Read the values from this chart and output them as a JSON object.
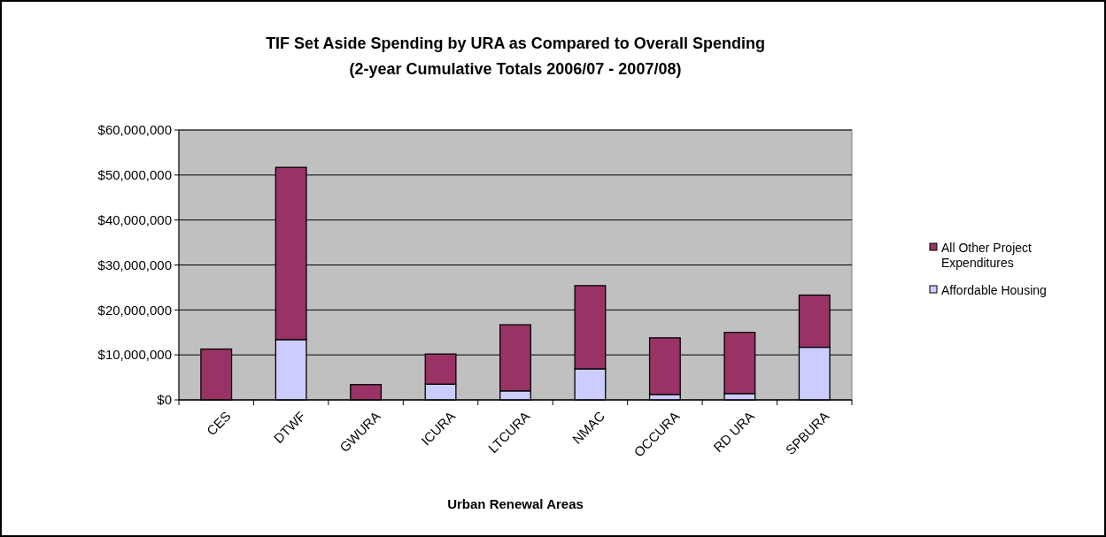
{
  "chart_data": {
    "type": "bar",
    "title": "TIF Set Aside Spending by URA as Compared to Overall Spending",
    "subtitle": "(2-year Cumulative Totals 2006/07 - 2007/08)",
    "xlabel": "Urban Renewal Areas",
    "categories": [
      "CES",
      "DTWF",
      "GWURA",
      "ICURA",
      "LTCURA",
      "NMAC",
      "OCCURA",
      "RD URA",
      "SPBURA"
    ],
    "stacked": true,
    "series": [
      {
        "name": "Affordable Housing",
        "color": "#ccccff",
        "values": [
          0,
          13400000,
          null,
          3500000,
          2000000,
          6900000,
          1200000,
          1400000,
          11700000
        ]
      },
      {
        "name": "All Other Project Expenditures",
        "color": "#993366",
        "values": [
          11300000,
          38300000,
          3400000,
          6700000,
          14700000,
          18500000,
          12600000,
          13600000,
          11600000
        ]
      }
    ],
    "ylim": [
      0,
      60000000
    ],
    "yticks": [
      {
        "value": 0,
        "label": "$0"
      },
      {
        "value": 10000000,
        "label": "$10,000,000"
      },
      {
        "value": 20000000,
        "label": "$20,000,000"
      },
      {
        "value": 30000000,
        "label": "$30,000,000"
      },
      {
        "value": 40000000,
        "label": "$40,000,000"
      },
      {
        "value": 50000000,
        "label": "$50,000,000"
      },
      {
        "value": 60000000,
        "label": "$60,000,000"
      }
    ],
    "grid": "y",
    "legend": "right"
  }
}
